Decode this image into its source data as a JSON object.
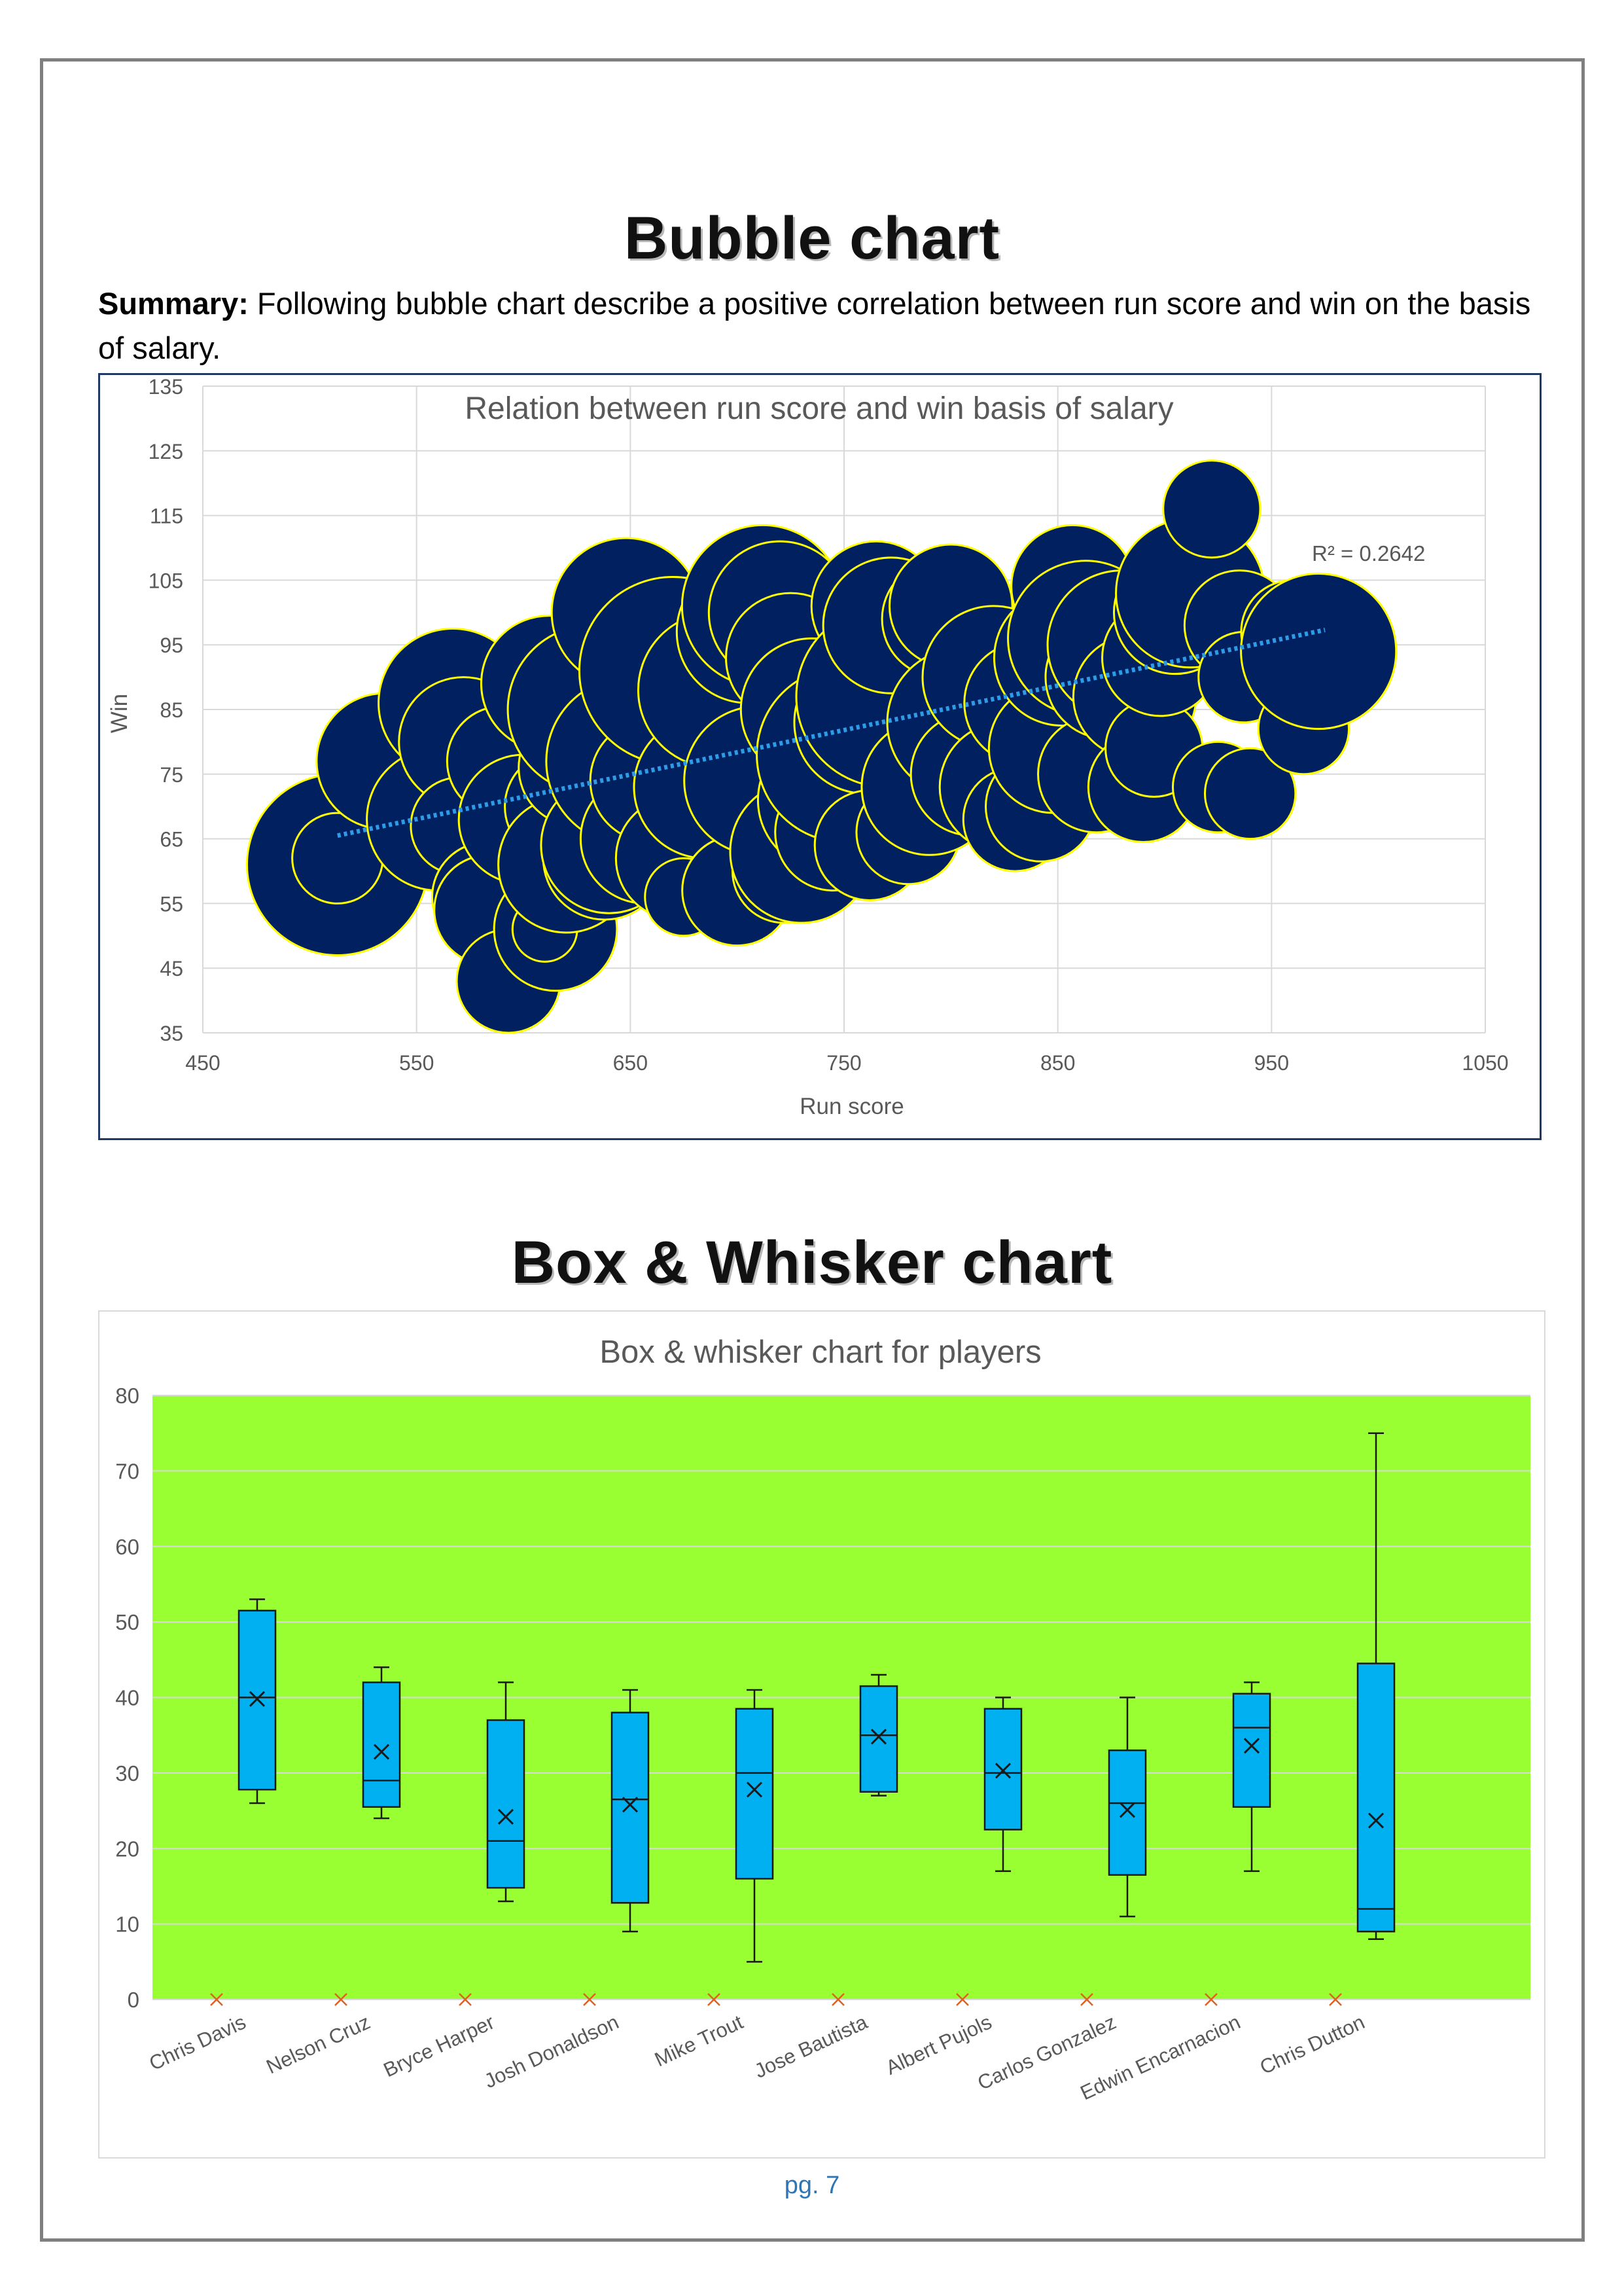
{
  "bubble_section": {
    "heading": "Bubble chart",
    "summary_label": "Summary:",
    "summary_text": " Following bubble chart describe a positive correlation between run score and win on the basis of salary."
  },
  "box_section": {
    "heading": "Box & Whisker chart"
  },
  "footer": {
    "page": "pg. 7"
  },
  "colors": {
    "bubble_fill": "#002060",
    "bubble_outline": "#ffff00",
    "trendline": "#2e9be6",
    "box_fill": "#00b0f0",
    "plot_bg_box": "#99ff33",
    "footer": "#2e75b6"
  },
  "chart_data": [
    {
      "type": "scatter",
      "subtype": "bubble",
      "title": "Relation between run score and win basis of salary",
      "xlabel": "Run score",
      "ylabel": "Win",
      "xlim": [
        450,
        1050
      ],
      "ylim": [
        35,
        135
      ],
      "x_ticks": [
        "450",
        "550",
        "650",
        "750",
        "850",
        "950",
        "1050"
      ],
      "y_ticks": [
        "35",
        "45",
        "55",
        "65",
        "75",
        "85",
        "95",
        "105",
        "115",
        "125",
        "135"
      ],
      "grid": true,
      "annotation": "R² = 0.2642",
      "trendline": {
        "x": [
          513,
          975
        ],
        "y": [
          65.5,
          97.3
        ]
      },
      "points": [
        {
          "x": 513,
          "y": 61,
          "r": 28
        },
        {
          "x": 513,
          "y": 62,
          "r": 14
        },
        {
          "x": 535,
          "y": 77,
          "r": 21
        },
        {
          "x": 560,
          "y": 68,
          "r": 22
        },
        {
          "x": 567,
          "y": 86,
          "r": 23
        },
        {
          "x": 572,
          "y": 80,
          "r": 20
        },
        {
          "x": 570,
          "y": 67,
          "r": 15
        },
        {
          "x": 583,
          "y": 56,
          "r": 17
        },
        {
          "x": 584,
          "y": 54,
          "r": 17
        },
        {
          "x": 590,
          "y": 77,
          "r": 17
        },
        {
          "x": 600,
          "y": 68,
          "r": 20
        },
        {
          "x": 593,
          "y": 43,
          "r": 16
        },
        {
          "x": 612,
          "y": 89,
          "r": 21
        },
        {
          "x": 615,
          "y": 51,
          "r": 19
        },
        {
          "x": 610,
          "y": 51,
          "r": 10
        },
        {
          "x": 617,
          "y": 70,
          "r": 17
        },
        {
          "x": 620,
          "y": 61,
          "r": 21
        },
        {
          "x": 625,
          "y": 76,
          "r": 18
        },
        {
          "x": 632,
          "y": 85,
          "r": 26
        },
        {
          "x": 638,
          "y": 62,
          "r": 19
        },
        {
          "x": 640,
          "y": 64,
          "r": 21
        },
        {
          "x": 648,
          "y": 100,
          "r": 23
        },
        {
          "x": 650,
          "y": 77,
          "r": 26
        },
        {
          "x": 657,
          "y": 65,
          "r": 20
        },
        {
          "x": 660,
          "y": 74,
          "r": 19
        },
        {
          "x": 670,
          "y": 91,
          "r": 29
        },
        {
          "x": 672,
          "y": 62,
          "r": 19
        },
        {
          "x": 675,
          "y": 56,
          "r": 12
        },
        {
          "x": 685,
          "y": 73,
          "r": 22
        },
        {
          "x": 690,
          "y": 88,
          "r": 24
        },
        {
          "x": 700,
          "y": 57,
          "r": 17
        },
        {
          "x": 705,
          "y": 97,
          "r": 22
        },
        {
          "x": 710,
          "y": 74,
          "r": 23
        },
        {
          "x": 712,
          "y": 101,
          "r": 25
        },
        {
          "x": 720,
          "y": 100,
          "r": 22
        },
        {
          "x": 722,
          "y": 60,
          "r": 16
        },
        {
          "x": 725,
          "y": 93,
          "r": 20
        },
        {
          "x": 730,
          "y": 63,
          "r": 22
        },
        {
          "x": 735,
          "y": 85,
          "r": 22
        },
        {
          "x": 743,
          "y": 71,
          "r": 22
        },
        {
          "x": 745,
          "y": 66,
          "r": 18
        },
        {
          "x": 750,
          "y": 78,
          "r": 27
        },
        {
          "x": 760,
          "y": 83,
          "r": 22
        },
        {
          "x": 762,
          "y": 64,
          "r": 17
        },
        {
          "x": 765,
          "y": 101,
          "r": 20
        },
        {
          "x": 770,
          "y": 87,
          "r": 28
        },
        {
          "x": 772,
          "y": 98,
          "r": 21
        },
        {
          "x": 780,
          "y": 66,
          "r": 16
        },
        {
          "x": 790,
          "y": 73,
          "r": 21
        },
        {
          "x": 795,
          "y": 99,
          "r": 18
        },
        {
          "x": 800,
          "y": 101,
          "r": 19
        },
        {
          "x": 805,
          "y": 83,
          "r": 23
        },
        {
          "x": 810,
          "y": 75,
          "r": 19
        },
        {
          "x": 820,
          "y": 90,
          "r": 22
        },
        {
          "x": 825,
          "y": 73,
          "r": 20
        },
        {
          "x": 830,
          "y": 68,
          "r": 16
        },
        {
          "x": 835,
          "y": 86,
          "r": 19
        },
        {
          "x": 842,
          "y": 70,
          "r": 17
        },
        {
          "x": 848,
          "y": 79,
          "r": 20
        },
        {
          "x": 852,
          "y": 93,
          "r": 21
        },
        {
          "x": 857,
          "y": 104,
          "r": 19
        },
        {
          "x": 863,
          "y": 96,
          "r": 24
        },
        {
          "x": 868,
          "y": 75,
          "r": 18
        },
        {
          "x": 873,
          "y": 90,
          "r": 19
        },
        {
          "x": 880,
          "y": 95,
          "r": 23
        },
        {
          "x": 886,
          "y": 87,
          "r": 19
        },
        {
          "x": 890,
          "y": 73,
          "r": 17
        },
        {
          "x": 895,
          "y": 79,
          "r": 15
        },
        {
          "x": 898,
          "y": 93,
          "r": 18
        },
        {
          "x": 905,
          "y": 100,
          "r": 19
        },
        {
          "x": 912,
          "y": 103,
          "r": 23
        },
        {
          "x": 922,
          "y": 116,
          "r": 15
        },
        {
          "x": 925,
          "y": 73,
          "r": 14
        },
        {
          "x": 935,
          "y": 98,
          "r": 17
        },
        {
          "x": 937,
          "y": 90,
          "r": 14
        },
        {
          "x": 940,
          "y": 72,
          "r": 14
        },
        {
          "x": 960,
          "y": 97,
          "r": 16
        },
        {
          "x": 965,
          "y": 82,
          "r": 14
        },
        {
          "x": 972,
          "y": 94,
          "r": 24
        }
      ]
    },
    {
      "type": "box",
      "title": "Box & whisker chart for players",
      "ylim": [
        0,
        80
      ],
      "y_ticks": [
        "0",
        "10",
        "20",
        "30",
        "40",
        "50",
        "60",
        "70",
        "80"
      ],
      "grid": true,
      "categories": [
        "Chris Davis",
        "Nelson Cruz",
        "Bryce Harper",
        "Josh Donaldson",
        "Mike Trout",
        "Jose Bautista",
        "Albert Pujols",
        "Carlos Gonzalez",
        "Edwin Encarnacion",
        "Chris Dutton"
      ],
      "boxes": [
        {
          "min": 26,
          "q1": 27.8,
          "median": 40,
          "q3": 51.5,
          "max": 53,
          "mean": 39.8
        },
        {
          "min": 24,
          "q1": 25.5,
          "median": 29,
          "q3": 42,
          "max": 44,
          "mean": 32.8
        },
        {
          "min": 13,
          "q1": 14.8,
          "median": 21,
          "q3": 37,
          "max": 42,
          "mean": 24.2
        },
        {
          "min": 9,
          "q1": 12.8,
          "median": 26.5,
          "q3": 38,
          "max": 41,
          "mean": 25.8
        },
        {
          "min": 5,
          "q1": 16,
          "median": 30,
          "q3": 38.5,
          "max": 41,
          "mean": 27.8
        },
        {
          "min": 27,
          "q1": 27.5,
          "median": 35,
          "q3": 41.5,
          "max": 43,
          "mean": 34.8
        },
        {
          "min": 17,
          "q1": 22.5,
          "median": 30,
          "q3": 38.5,
          "max": 40,
          "mean": 30.3
        },
        {
          "min": 11,
          "q1": 16.5,
          "median": 26,
          "q3": 33,
          "max": 40,
          "mean": 25.1
        },
        {
          "min": 17,
          "q1": 25.5,
          "median": 36,
          "q3": 40.5,
          "max": 42,
          "mean": 33.6
        },
        {
          "min": 8,
          "q1": 9,
          "median": 12,
          "q3": 44.5,
          "max": 75,
          "mean": 23.7
        }
      ],
      "zero_markers": [
        0,
        0,
        0,
        0,
        0,
        0,
        0,
        0,
        0,
        0
      ]
    }
  ]
}
